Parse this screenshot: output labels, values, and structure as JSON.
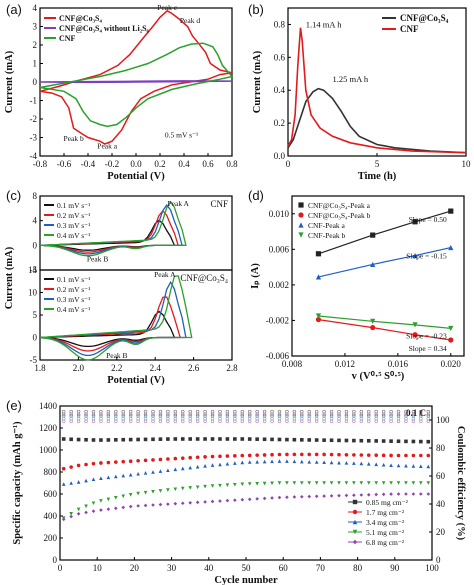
{
  "chart_data": [
    {
      "id": "a",
      "panel_label": "(a)",
      "type": "line",
      "xlabel": "Potential (V)",
      "ylabel": "Current (mA)",
      "xlim": [
        -0.8,
        0.8
      ],
      "ylim": [
        -4,
        4
      ],
      "xticks": [
        "-0.8",
        "-0.6",
        "-0.4",
        "-0.2",
        "0.0",
        "0.2",
        "0.4",
        "0.6",
        "0.8"
      ],
      "yticks": [
        "-4",
        "-3",
        "-2",
        "-1",
        "0",
        "1",
        "2",
        "3",
        "4"
      ],
      "legend_position": "top-left",
      "annotations": [
        {
          "text": "Peak c",
          "x": 0.26,
          "y": 3.9
        },
        {
          "text": "Peak d",
          "x": 0.45,
          "y": 3.2
        },
        {
          "text": "Peak b",
          "x": -0.52,
          "y": -3.2
        },
        {
          "text": "Peak a",
          "x": -0.24,
          "y": -3.6
        },
        {
          "text": "0.5 mV s⁻¹",
          "x": 0.38,
          "y": -3.0
        }
      ],
      "series": [
        {
          "name": "CNF@Co₃S₄",
          "color": "#e31a1c",
          "points": [
            [
              -0.8,
              -0.5
            ],
            [
              -0.7,
              -0.6
            ],
            [
              -0.62,
              -0.8
            ],
            [
              -0.56,
              -1.4
            ],
            [
              -0.52,
              -2.5
            ],
            [
              -0.45,
              -2.8
            ],
            [
              -0.4,
              -3.0
            ],
            [
              -0.3,
              -3.2
            ],
            [
              -0.26,
              -3.35
            ],
            [
              -0.2,
              -3.2
            ],
            [
              -0.12,
              -2.6
            ],
            [
              -0.04,
              -1.6
            ],
            [
              0.04,
              -0.9
            ],
            [
              0.15,
              -0.5
            ],
            [
              0.3,
              -0.15
            ],
            [
              0.45,
              0.0
            ],
            [
              0.6,
              0.15
            ],
            [
              0.7,
              0.4
            ],
            [
              0.8,
              0.5
            ],
            [
              0.7,
              0.65
            ],
            [
              0.62,
              1.0
            ],
            [
              0.58,
              1.6
            ],
            [
              0.52,
              2.1
            ],
            [
              0.47,
              2.5
            ],
            [
              0.43,
              3.0
            ],
            [
              0.36,
              3.4
            ],
            [
              0.3,
              3.7
            ],
            [
              0.26,
              3.85
            ],
            [
              0.2,
              3.5
            ],
            [
              0.14,
              3.0
            ],
            [
              0.05,
              2.3
            ],
            [
              -0.05,
              1.5
            ],
            [
              -0.15,
              0.9
            ],
            [
              -0.3,
              0.4
            ],
            [
              -0.5,
              0.05
            ],
            [
              -0.65,
              -0.25
            ],
            [
              -0.8,
              -0.5
            ]
          ]
        },
        {
          "name": "CNF@Co₃S₄ without Li₂S₆",
          "color": "#7b3fbf",
          "points": [
            [
              -0.8,
              0.0
            ],
            [
              -0.4,
              -0.02
            ],
            [
              0.0,
              0.0
            ],
            [
              0.4,
              0.02
            ],
            [
              0.8,
              0.05
            ],
            [
              0.4,
              0.06
            ],
            [
              0.0,
              0.04
            ],
            [
              -0.4,
              0.02
            ],
            [
              -0.8,
              0.0
            ]
          ]
        },
        {
          "name": "CNF",
          "color": "#2ca02c",
          "points": [
            [
              -0.8,
              -0.3
            ],
            [
              -0.6,
              -0.5
            ],
            [
              -0.5,
              -0.9
            ],
            [
              -0.44,
              -1.6
            ],
            [
              -0.38,
              -2.1
            ],
            [
              -0.3,
              -2.3
            ],
            [
              -0.24,
              -2.4
            ],
            [
              -0.16,
              -2.3
            ],
            [
              -0.08,
              -1.9
            ],
            [
              0.0,
              -1.4
            ],
            [
              0.1,
              -0.9
            ],
            [
              0.3,
              -0.4
            ],
            [
              0.5,
              -0.1
            ],
            [
              0.7,
              0.15
            ],
            [
              0.8,
              0.3
            ],
            [
              0.72,
              0.9
            ],
            [
              0.68,
              1.5
            ],
            [
              0.64,
              1.9
            ],
            [
              0.56,
              2.1
            ],
            [
              0.46,
              2.05
            ],
            [
              0.36,
              1.85
            ],
            [
              0.26,
              1.5
            ],
            [
              0.1,
              1.0
            ],
            [
              -0.1,
              0.6
            ],
            [
              -0.3,
              0.3
            ],
            [
              -0.55,
              0.0
            ],
            [
              -0.8,
              -0.3
            ]
          ]
        }
      ]
    },
    {
      "id": "b",
      "panel_label": "(b)",
      "type": "line",
      "xlabel": "Time (h)",
      "ylabel": "Current (mA)",
      "xlim": [
        0,
        10
      ],
      "ylim": [
        0,
        0.9
      ],
      "xticks": [
        "0",
        "5",
        "10"
      ],
      "yticks": [
        "0.0",
        "0.2",
        "0.4",
        "0.6",
        "0.8"
      ],
      "legend_position": "top-right",
      "annotations": [
        {
          "text": "1.14 mA h",
          "x": 1.0,
          "y": 0.78
        },
        {
          "text": "1.25 mA h",
          "x": 2.5,
          "y": 0.45
        }
      ],
      "series": [
        {
          "name": "CNF@Co₃S₄",
          "color": "#333333",
          "points": [
            [
              0,
              0.05
            ],
            [
              0.3,
              0.1
            ],
            [
              0.6,
              0.2
            ],
            [
              1.0,
              0.33
            ],
            [
              1.4,
              0.39
            ],
            [
              1.7,
              0.41
            ],
            [
              2.0,
              0.4
            ],
            [
              2.5,
              0.35
            ],
            [
              3.0,
              0.27
            ],
            [
              3.5,
              0.18
            ],
            [
              4.0,
              0.12
            ],
            [
              5.0,
              0.07
            ],
            [
              6.0,
              0.05
            ],
            [
              8.0,
              0.03
            ],
            [
              10.0,
              0.02
            ]
          ]
        },
        {
          "name": "CNF",
          "color": "#e31a1c",
          "points": [
            [
              0,
              0.06
            ],
            [
              0.2,
              0.1
            ],
            [
              0.4,
              0.25
            ],
            [
              0.55,
              0.55
            ],
            [
              0.7,
              0.78
            ],
            [
              0.8,
              0.7
            ],
            [
              1.0,
              0.4
            ],
            [
              1.3,
              0.25
            ],
            [
              1.8,
              0.17
            ],
            [
              2.5,
              0.12
            ],
            [
              3.5,
              0.08
            ],
            [
              5.0,
              0.05
            ],
            [
              7.0,
              0.03
            ],
            [
              10.0,
              0.02
            ]
          ]
        }
      ]
    },
    {
      "id": "c",
      "panel_label": "(c)",
      "type": "line",
      "xlabel": "Potential (V)",
      "ylabel": "Current (mA)",
      "xlim": [
        1.8,
        2.8
      ],
      "xticks": [
        "1.8",
        "2.0",
        "2.2",
        "2.4",
        "2.6",
        "2.8"
      ],
      "subplots": [
        {
          "title": "CNF",
          "ylim": [
            -4,
            8
          ],
          "yticks": [
            "-4",
            "0",
            "4",
            "8"
          ],
          "peak_labels": [
            {
              "text": "Peak A",
              "x": 2.52,
              "y": 6.4
            },
            {
              "text": "Peak B",
              "x": 2.1,
              "y": -2.6
            }
          ],
          "legend": [
            "0.1 mV s⁻¹",
            "0.2 mV s⁻¹",
            "0.3 mV s⁻¹",
            "0.4 mV s⁻¹"
          ],
          "scan_rates": [
            {
              "color": "#111111",
              "peak_x": 2.42,
              "anodic_peak": 3.5,
              "cathodic": -0.8
            },
            {
              "color": "#e31a1c",
              "peak_x": 2.44,
              "anodic_peak": 4.8,
              "cathodic": -1.1
            },
            {
              "color": "#1f5fbf",
              "peak_x": 2.46,
              "anodic_peak": 5.6,
              "cathodic": -1.4
            },
            {
              "color": "#2ca02c",
              "peak_x": 2.48,
              "anodic_peak": 6.0,
              "cathodic": -1.7
            }
          ]
        },
        {
          "title": "CNF@Co₃S₄",
          "ylim": [
            -5,
            15
          ],
          "yticks": [
            "-5",
            "0",
            "5",
            "10",
            "15"
          ],
          "peak_labels": [
            {
              "text": "Peak A",
              "x": 2.45,
              "y": 13.5
            },
            {
              "text": "Peak B",
              "x": 2.2,
              "y": -4.5
            }
          ],
          "legend": [
            "0.1 mV s⁻¹",
            "0.2 mV s⁻¹",
            "0.3 mV s⁻¹",
            "0.4 mV s⁻¹"
          ],
          "scan_rates": [
            {
              "color": "#111111",
              "peak_x": 2.42,
              "anodic_peak": 5.0,
              "cathodic": -2.0
            },
            {
              "color": "#e31a1c",
              "peak_x": 2.45,
              "anodic_peak": 8.0,
              "cathodic": -3.0
            },
            {
              "color": "#1f5fbf",
              "peak_x": 2.48,
              "anodic_peak": 10.5,
              "cathodic": -4.0
            },
            {
              "color": "#2ca02c",
              "peak_x": 2.51,
              "anodic_peak": 12.0,
              "cathodic": -5.0
            }
          ]
        }
      ]
    },
    {
      "id": "d",
      "panel_label": "(d)",
      "type": "scatter",
      "xlabel": "v (V⁰·⁵ S⁰·⁵)",
      "ylabel": "Iₚ (A)",
      "xlim": [
        0.008,
        0.021
      ],
      "ylim": [
        -0.006,
        0.012
      ],
      "xticks": [
        "0.008",
        "0.012",
        "0.016",
        "0.020"
      ],
      "yticks": [
        "-0.006",
        "-0.002",
        "0.002",
        "0.006",
        "0.010"
      ],
      "legend_position": "top-left",
      "slopes": [
        "Slope = 0.50",
        "Slope = 0.34",
        "Slope = -0.15",
        "Slope = -0.23"
      ],
      "series": [
        {
          "name": "CNF@Co₃S₄-Peak a",
          "color": "#222222",
          "marker": "square",
          "x": [
            0.01,
            0.0141,
            0.0173,
            0.02
          ],
          "y": [
            0.0055,
            0.0076,
            0.0091,
            0.0103
          ]
        },
        {
          "name": "CNF@Co₃S₄-Peak b",
          "color": "#e31a1c",
          "marker": "circle",
          "x": [
            0.01,
            0.0141,
            0.0173,
            0.02
          ],
          "y": [
            -0.0019,
            -0.0028,
            -0.0036,
            -0.0042
          ]
        },
        {
          "name": "CNF-Peak a",
          "color": "#1f5fbf",
          "marker": "triangle",
          "x": [
            0.01,
            0.0141,
            0.0173,
            0.02
          ],
          "y": [
            0.0029,
            0.0043,
            0.0053,
            0.0062
          ]
        },
        {
          "name": "CNF-Peak b",
          "color": "#2ca02c",
          "marker": "triangle-down",
          "x": [
            0.01,
            0.0141,
            0.0173,
            0.02
          ],
          "y": [
            -0.0015,
            -0.0021,
            -0.0025,
            -0.0029
          ]
        }
      ]
    },
    {
      "id": "e",
      "panel_label": "(e)",
      "type": "scatter",
      "xlabel": "Cycle number",
      "ylabel": "Specific capacity (mAh g⁻¹)",
      "y2label": "Coulombic efficiency (%)",
      "xlim": [
        0,
        100
      ],
      "ylim": [
        0,
        1400
      ],
      "y2lim": [
        0,
        110
      ],
      "xticks": [
        "0",
        "10",
        "20",
        "30",
        "40",
        "50",
        "60",
        "70",
        "80",
        "90",
        "100"
      ],
      "yticks": [
        "0",
        "200",
        "400",
        "600",
        "800",
        "1000",
        "1200",
        "1400"
      ],
      "y2ticks": [
        "0",
        "20",
        "40",
        "60",
        "80",
        "100"
      ],
      "rate_label": "0.1 C",
      "legend_position": "bottom-right",
      "series": [
        {
          "name": "0.85 mg cm⁻²",
          "color": "#333333",
          "marker": "square",
          "cycles": [
            1,
            5,
            10,
            20,
            30,
            40,
            50,
            60,
            70,
            80,
            90,
            100
          ],
          "capacity": [
            1100,
            1095,
            1090,
            1095,
            1100,
            1100,
            1100,
            1095,
            1090,
            1085,
            1080,
            1075
          ],
          "ce": 106
        },
        {
          "name": "1.7 mg cm⁻²",
          "color": "#e31a1c",
          "marker": "circle",
          "cycles": [
            1,
            5,
            10,
            20,
            30,
            40,
            50,
            60,
            70,
            80,
            90,
            100
          ],
          "capacity": [
            830,
            860,
            880,
            900,
            920,
            940,
            950,
            960,
            960,
            955,
            950,
            950
          ],
          "ce": 104
        },
        {
          "name": "3.4 mg cm⁻²",
          "color": "#1f5fbf",
          "marker": "triangle",
          "cycles": [
            1,
            5,
            10,
            20,
            30,
            40,
            50,
            60,
            70,
            80,
            90,
            100
          ],
          "capacity": [
            690,
            710,
            740,
            780,
            820,
            860,
            890,
            900,
            890,
            880,
            860,
            850
          ],
          "ce": 103
        },
        {
          "name": "5.1 mg cm⁻²",
          "color": "#2ca02c",
          "marker": "triangle-down",
          "cycles": [
            1,
            5,
            10,
            20,
            30,
            40,
            50,
            60,
            70,
            80,
            90,
            100
          ],
          "capacity": [
            380,
            460,
            530,
            600,
            640,
            670,
            690,
            700,
            700,
            700,
            700,
            700
          ],
          "ce": 101
        },
        {
          "name": "6.8 mg cm⁻²",
          "color": "#8e44ad",
          "marker": "diamond",
          "cycles": [
            1,
            5,
            10,
            20,
            30,
            40,
            50,
            60,
            70,
            80,
            90,
            100
          ],
          "capacity": [
            370,
            420,
            450,
            490,
            510,
            530,
            550,
            570,
            580,
            590,
            600,
            600
          ],
          "ce": 99
        }
      ]
    }
  ]
}
